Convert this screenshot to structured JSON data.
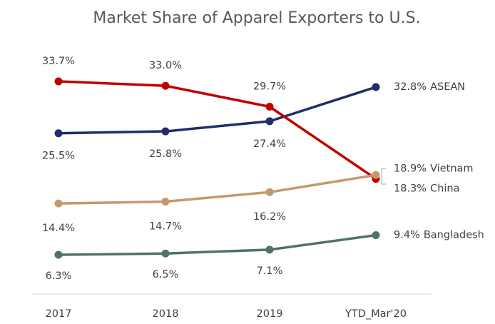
{
  "chart_data": {
    "type": "line",
    "title": "Market Share of Apparel Exporters to U.S.",
    "categories": [
      "2017",
      "2018",
      "2019",
      "YTD_Mar'20"
    ],
    "series": [
      {
        "name": "ASEAN",
        "color": "#1f2d6b",
        "values": [
          25.5,
          25.8,
          27.4,
          32.8
        ],
        "value_labels": [
          "25.5%",
          "25.8%",
          "27.4%",
          "32.8%"
        ]
      },
      {
        "name": "China",
        "color": "#c00000",
        "values": [
          33.7,
          33.0,
          29.7,
          18.3
        ],
        "value_labels": [
          "33.7%",
          "33.0%",
          "29.7%",
          "18.3%"
        ]
      },
      {
        "name": "Vietnam",
        "color": "#c4996b",
        "values": [
          14.4,
          14.7,
          16.2,
          18.9
        ],
        "value_labels": [
          "14.4%",
          "14.7%",
          "16.2%",
          "18.9%"
        ]
      },
      {
        "name": "Bangladesh",
        "color": "#4f7461",
        "values": [
          6.3,
          6.5,
          7.1,
          9.4
        ],
        "value_labels": [
          "6.3%",
          "6.5%",
          "7.1%",
          "9.4%"
        ]
      }
    ]
  }
}
